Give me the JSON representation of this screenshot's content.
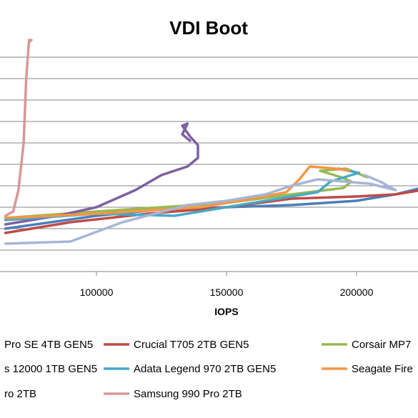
{
  "chart_data": {
    "type": "line",
    "title": "VDI Boot",
    "xlabel": "IOPS",
    "ylabel": "",
    "xlim": [
      65000,
      225000
    ],
    "ylim": [
      0,
      11
    ],
    "x_ticks": [
      100000,
      150000,
      200000
    ],
    "x_tick_labels": [
      "100000",
      "150000",
      "200000"
    ],
    "grid": true,
    "legend_position": "bottom",
    "series": [
      {
        "name": "Pro SE 4TB GEN5",
        "color": "#4a7ebb",
        "points": [
          [
            65000,
            2.0
          ],
          [
            100000,
            2.6
          ],
          [
            125000,
            2.9
          ],
          [
            150000,
            3.0
          ],
          [
            175000,
            3.1
          ],
          [
            200000,
            3.3
          ],
          [
            215000,
            3.6
          ],
          [
            225000,
            3.9
          ]
        ]
      },
      {
        "name": "Crucial T705 2TB GEN5",
        "color": "#be4b48",
        "points": [
          [
            65000,
            1.8
          ],
          [
            90000,
            2.3
          ],
          [
            120000,
            2.7
          ],
          [
            150000,
            3.0
          ],
          [
            175000,
            3.4
          ],
          [
            200000,
            3.5
          ],
          [
            215000,
            3.6
          ],
          [
            225000,
            3.8
          ]
        ]
      },
      {
        "name": "Corsair MP7",
        "color": "#98b954",
        "points": [
          [
            65000,
            2.5
          ],
          [
            100000,
            2.8
          ],
          [
            150000,
            3.2
          ],
          [
            175000,
            3.6
          ],
          [
            195000,
            3.9
          ],
          [
            198000,
            4.2
          ],
          [
            194000,
            4.4
          ],
          [
            186000,
            4.7
          ],
          [
            196000,
            4.8
          ],
          [
            204000,
            4.4
          ]
        ]
      },
      {
        "name": "s 12000 1TB GEN5",
        "color": "#7d60a0",
        "points": [
          [
            65000,
            2.2
          ],
          [
            85000,
            2.6
          ],
          [
            100000,
            3.0
          ],
          [
            115000,
            3.8
          ],
          [
            125000,
            4.5
          ],
          [
            135000,
            4.9
          ],
          [
            139000,
            5.3
          ],
          [
            139000,
            5.9
          ],
          [
            136000,
            6.3
          ],
          [
            133000,
            6.8
          ],
          [
            135000,
            6.9
          ],
          [
            133000,
            6.4
          ],
          [
            136000,
            6.1
          ]
        ]
      },
      {
        "name": "Adata Legend 970 2TB GEN5",
        "color": "#46aac5",
        "points": [
          [
            65000,
            2.4
          ],
          [
            100000,
            2.7
          ],
          [
            130000,
            2.6
          ],
          [
            150000,
            3.0
          ],
          [
            170000,
            3.4
          ],
          [
            185000,
            3.7
          ],
          [
            190000,
            4.2
          ],
          [
            198000,
            4.5
          ],
          [
            201000,
            4.6
          ],
          [
            193000,
            4.8
          ]
        ]
      },
      {
        "name": "Seagate Fire",
        "color": "#f79646",
        "points": [
          [
            65000,
            2.5
          ],
          [
            100000,
            2.7
          ],
          [
            140000,
            3.0
          ],
          [
            160000,
            3.4
          ],
          [
            173000,
            3.7
          ],
          [
            178000,
            4.3
          ],
          [
            182000,
            4.9
          ],
          [
            192000,
            4.8
          ],
          [
            197000,
            4.7
          ]
        ]
      },
      {
        "name": "ro 2TB",
        "color": "#a5b6d6",
        "points": [
          [
            65000,
            1.3
          ],
          [
            90000,
            1.4
          ],
          [
            110000,
            2.3
          ],
          [
            135000,
            3.1
          ],
          [
            150000,
            3.3
          ],
          [
            165000,
            3.6
          ],
          [
            175000,
            4.0
          ],
          [
            185000,
            4.3
          ],
          [
            205000,
            4.1
          ],
          [
            215000,
            3.8
          ],
          [
            209000,
            4.2
          ],
          [
            203000,
            4.5
          ]
        ]
      },
      {
        "name": "Samsung 990 Pro 2TB",
        "color": "#d99795",
        "points": [
          [
            65000,
            2.6
          ],
          [
            68000,
            2.8
          ],
          [
            70000,
            3.8
          ],
          [
            72000,
            6.0
          ],
          [
            73000,
            9.0
          ],
          [
            74000,
            10.7
          ],
          [
            75000,
            10.8
          ],
          [
            74000,
            10.8
          ]
        ]
      }
    ],
    "legend": [
      {
        "label": "Pro SE 4TB GEN5",
        "color": "#4a7ebb"
      },
      {
        "label": "Crucial T705 2TB GEN5",
        "color": "#be4b48"
      },
      {
        "label": "Corsair MP7",
        "color": "#98b954"
      },
      {
        "label": "s 12000 1TB GEN5",
        "color": "#7d60a0"
      },
      {
        "label": "Adata Legend 970 2TB GEN5",
        "color": "#46aac5"
      },
      {
        "label": "Seagate Fire",
        "color": "#f79646"
      },
      {
        "label": "ro 2TB",
        "color": "#a5b6d6"
      },
      {
        "label": "Samsung 990 Pro 2TB",
        "color": "#d99795"
      }
    ]
  }
}
